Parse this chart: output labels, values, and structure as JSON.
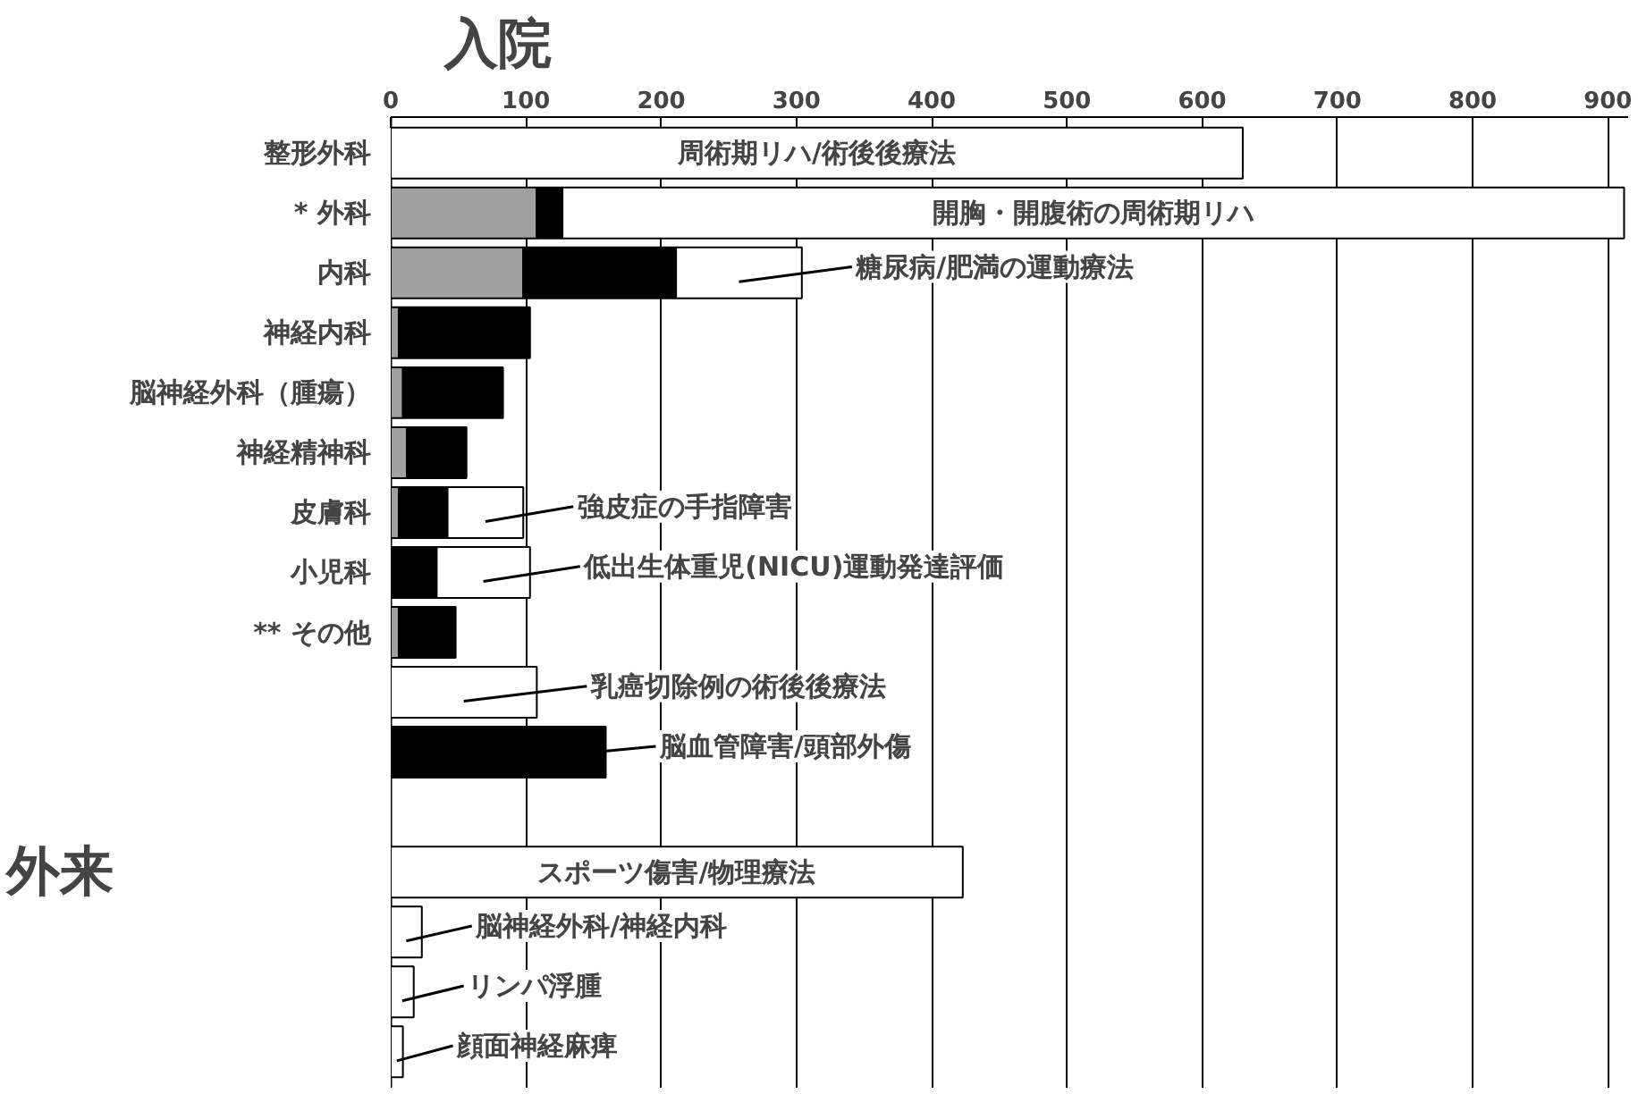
{
  "chart_data": {
    "type": "bar",
    "orientation": "horizontal",
    "stacked": true,
    "title": "入院",
    "annotations": [
      "外来"
    ],
    "categories": [
      "整形外科",
      "* 外科",
      "内科",
      "神経内科",
      "脳神経外科（腫瘍）",
      "神経精神科",
      "皮膚科",
      "小児科",
      "** その他",
      null,
      null,
      null,
      null,
      null,
      null,
      null
    ],
    "series": [
      {
        "color": "#a0a0a0",
        "values": [
          null,
          108,
          98,
          6,
          9,
          12,
          6,
          null,
          6,
          null,
          null,
          null,
          null,
          null,
          null,
          null
        ]
      },
      {
        "color": "#000000",
        "values": [
          null,
          19,
          113,
          97,
          74,
          44,
          36,
          34,
          42,
          null,
          159,
          null,
          null,
          null,
          null,
          null
        ],
        "value_labels": [
          null,
          null,
          null,
          null,
          null,
          null,
          null,
          null,
          null,
          null,
          "脳血管障害/頭部外傷",
          null,
          null,
          null,
          null,
          null
        ]
      },
      {
        "color": "#ffffff",
        "values": [
          630,
          785,
          93,
          null,
          null,
          null,
          56,
          69,
          null,
          108,
          null,
          null,
          423,
          23,
          17,
          9
        ],
        "value_labels": [
          "周術期リハ/術後後療法",
          "開胸・開腹術の周術期リハ",
          "糖尿病/肥満の運動療法",
          null,
          null,
          null,
          "強皮症の手指障害",
          "低出生体重児(NICU)運動発達評価",
          null,
          "乳癌切除例の術後後療法",
          null,
          null,
          "スポーツ傷害/物理療法",
          "脳神経外科/神経内科",
          "リンパ浮腫",
          "顔面神経麻痺"
        ]
      }
    ],
    "xlim": [
      0,
      915
    ],
    "xticks": [
      0,
      100,
      200,
      300,
      400,
      500,
      600,
      700,
      800,
      900
    ],
    "grid": "x"
  }
}
